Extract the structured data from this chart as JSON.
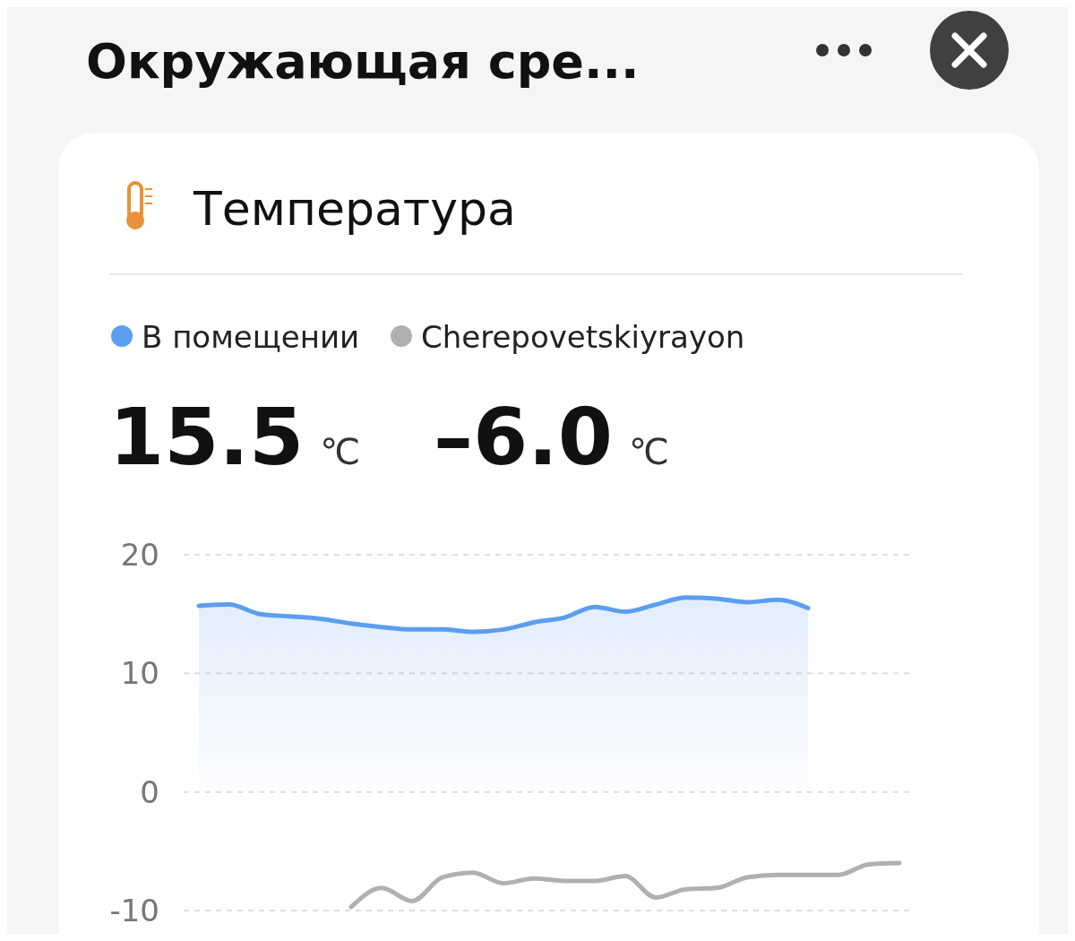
{
  "chart_data": {
    "type": "line",
    "title": "Окружающая сре...",
    "subtitle": "Температура",
    "categories": [
      null,
      null,
      null,
      null,
      null,
      null,
      null,
      null,
      null,
      null,
      null,
      null,
      null,
      null,
      null,
      null,
      null,
      null,
      null,
      null,
      null,
      null,
      null,
      null
    ],
    "series": [
      {
        "name": "В помещении",
        "type": "area",
        "color": "#5b9ef0",
        "values": [
          15.7,
          15.8,
          15.0,
          14.8,
          14.6,
          14.2,
          13.9,
          13.7,
          13.7,
          13.5,
          13.7,
          14.3,
          14.7,
          15.6,
          15.2,
          15.8,
          16.4,
          16.3,
          16.0,
          16.2,
          15.5,
          null,
          null,
          null
        ]
      },
      {
        "name": "Cherepovetskiyrayon",
        "color": "#b0b0b0",
        "values": [
          null,
          null,
          null,
          null,
          null,
          -9.7,
          -8.1,
          -9.2,
          -7.2,
          -6.8,
          -7.7,
          -7.3,
          -7.5,
          -7.5,
          -7.1,
          -8.9,
          -8.2,
          -8.1,
          -7.2,
          -7.0,
          -7.0,
          -7.0,
          -6.1,
          -6.0
        ]
      }
    ],
    "annotations": [
      "15.5 ℃",
      "–6.0 ℃"
    ],
    "ylim": [
      -10,
      20
    ],
    "yticks": [
      -10,
      0,
      10,
      20
    ],
    "grid": "y",
    "legend": "top left",
    "marker": "none",
    "line_style": "solid"
  }
}
